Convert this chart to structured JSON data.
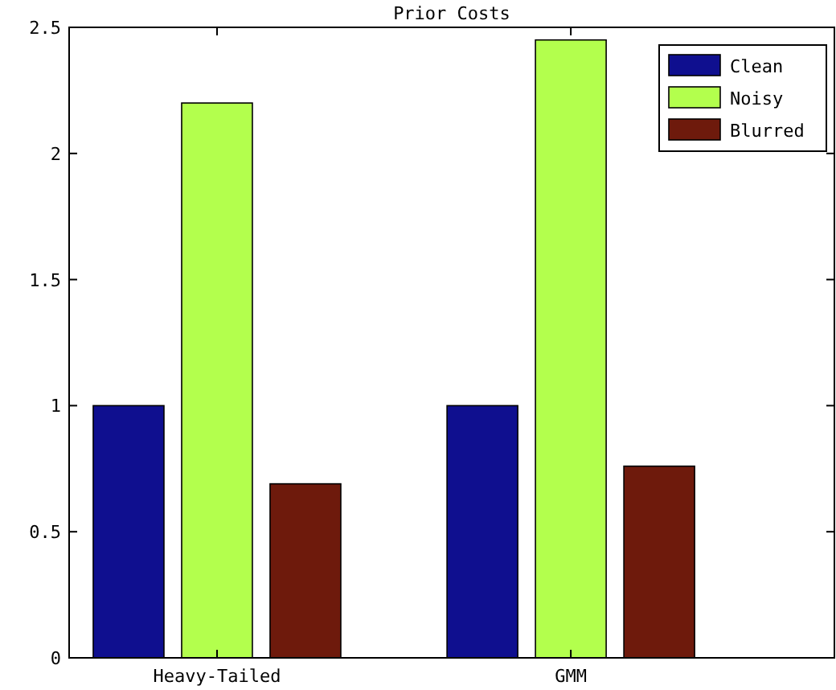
{
  "chart_data": {
    "type": "bar",
    "title": "Prior Costs",
    "categories": [
      "Heavy-Tailed",
      "GMM"
    ],
    "series": [
      {
        "name": "Clean",
        "color": "#0f0f8f",
        "values": [
          1,
          1
        ]
      },
      {
        "name": "Noisy",
        "color": "#b3ff4d",
        "values": [
          2.2,
          2.45
        ]
      },
      {
        "name": "Blurred",
        "color": "#6e1a0c",
        "values": [
          0.69,
          0.76
        ]
      }
    ],
    "ylim": [
      0,
      2.5
    ],
    "yticks": [
      0,
      0.5,
      1,
      1.5,
      2,
      2.5
    ],
    "legend": "top right",
    "grid": false
  }
}
